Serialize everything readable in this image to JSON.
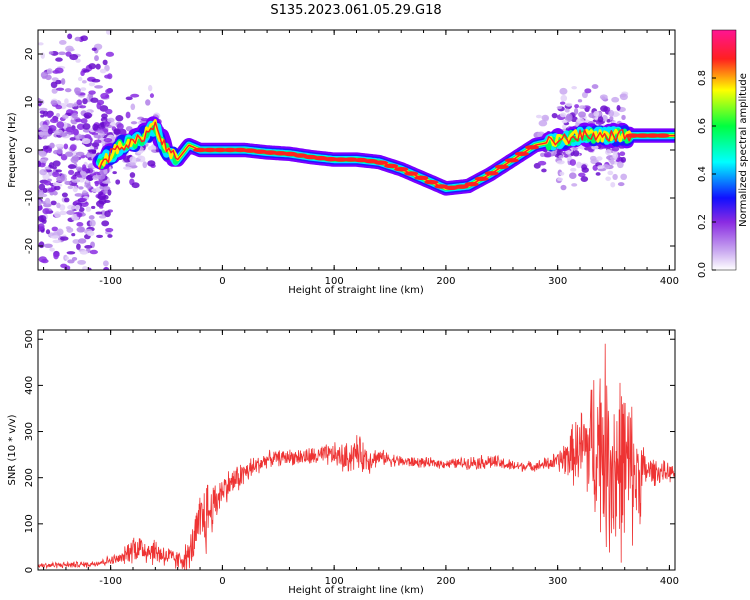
{
  "figure_title": "S135.2023.061.05.29.G18",
  "chart_data": [
    {
      "type": "heatmap",
      "title": "S135.2023.061.05.29.G18",
      "xlabel": "Height of straight line (km)",
      "ylabel": "Frequency (Hz)",
      "xlim": [
        -165,
        405
      ],
      "ylim": [
        -25,
        25
      ],
      "x_ticks": [
        -100,
        0,
        100,
        200,
        300,
        400
      ],
      "y_ticks": [
        -20,
        -10,
        0,
        10,
        20
      ],
      "colorbar": {
        "label": "Normalized spectral amplitude",
        "range": [
          0,
          1
        ],
        "ticks": [
          0.0,
          0.2,
          0.4,
          0.6,
          0.8
        ],
        "colormap": [
          "#ffffff",
          "#c9a8f0",
          "#8a2be2",
          "#1010ff",
          "#00ffff",
          "#00ff40",
          "#ffff00",
          "#ff2020",
          "#ff1493"
        ]
      },
      "ridge": {
        "x": [
          -110,
          -90,
          -75,
          -60,
          -50,
          -40,
          -30,
          -20,
          0,
          20,
          40,
          60,
          80,
          100,
          120,
          140,
          160,
          180,
          200,
          220,
          240,
          260,
          280,
          300,
          320,
          340,
          360,
          380,
          405
        ],
        "y": [
          -3,
          1,
          2,
          5,
          0,
          -2,
          1,
          0,
          0,
          0,
          -0.5,
          -0.8,
          -1.5,
          -2,
          -2,
          -2.5,
          -4,
          -6,
          -8,
          -7.5,
          -5,
          -2,
          1,
          2,
          3,
          3,
          3,
          3,
          3
        ]
      }
    },
    {
      "type": "line",
      "xlabel": "Height of straight line (km)",
      "ylabel": "SNR (10 * v/v)",
      "xlim": [
        -165,
        405
      ],
      "ylim": [
        0,
        520
      ],
      "x_ticks": [
        -100,
        0,
        100,
        200,
        300,
        400
      ],
      "y_ticks": [
        0,
        100,
        200,
        300,
        400,
        500
      ],
      "color": "#ee3333",
      "envelope": {
        "x": [
          -165,
          -120,
          -90,
          -80,
          -70,
          -60,
          -40,
          -30,
          -20,
          -15,
          -10,
          0,
          20,
          40,
          60,
          80,
          100,
          110,
          120,
          130,
          140,
          160,
          200,
          240,
          260,
          280,
          300,
          320,
          330,
          340,
          350,
          360,
          370,
          380,
          405
        ],
        "mean": [
          10,
          12,
          25,
          50,
          45,
          40,
          20,
          30,
          100,
          120,
          130,
          175,
          210,
          240,
          245,
          245,
          250,
          240,
          255,
          240,
          245,
          235,
          230,
          235,
          225,
          225,
          235,
          260,
          270,
          280,
          220,
          230,
          200,
          215,
          210
        ],
        "spread": [
          8,
          8,
          15,
          40,
          40,
          35,
          25,
          40,
          80,
          110,
          70,
          40,
          35,
          20,
          20,
          25,
          30,
          40,
          45,
          40,
          20,
          15,
          12,
          20,
          15,
          12,
          25,
          100,
          180,
          250,
          270,
          220,
          160,
          40,
          20
        ]
      }
    }
  ]
}
